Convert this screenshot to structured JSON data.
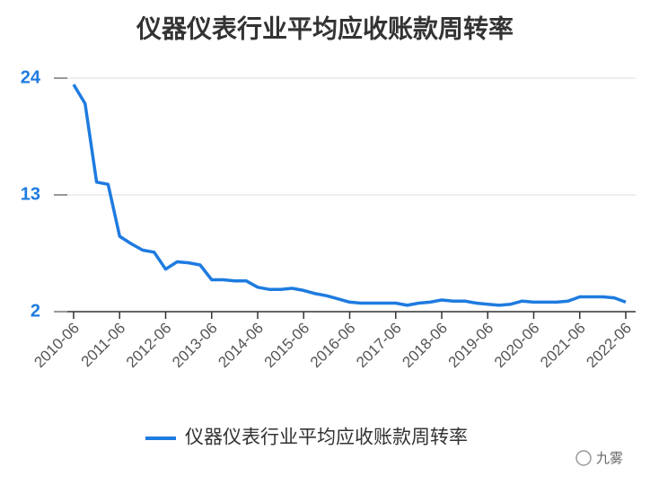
{
  "chart_data": {
    "type": "line",
    "title": "仪器仪表行业平均应收账款周转率",
    "categories": [
      "2010-06",
      null,
      null,
      null,
      "2011-06",
      null,
      null,
      null,
      "2012-06",
      null,
      null,
      null,
      "2013-06",
      null,
      null,
      null,
      "2014-06",
      null,
      null,
      null,
      "2015-06",
      null,
      null,
      null,
      "2016-06",
      null,
      null,
      null,
      "2017-06",
      null,
      null,
      null,
      "2018-06",
      null,
      null,
      null,
      "2019-06",
      null,
      null,
      null,
      "2020-06",
      null,
      null,
      null,
      "2021-06",
      null,
      null,
      null,
      "2022-06"
    ],
    "series": [
      {
        "name": "仪器仪表行业平均应收账款周转率",
        "color": "#1e7be0",
        "values": [
          23.4,
          21.6,
          14.2,
          14.0,
          9.1,
          8.4,
          7.8,
          7.6,
          6.0,
          6.7,
          6.6,
          6.4,
          5.0,
          5.0,
          4.9,
          4.9,
          4.3,
          4.1,
          4.1,
          4.2,
          4.0,
          3.7,
          3.5,
          3.2,
          2.9,
          2.8,
          2.8,
          2.8,
          2.8,
          2.6,
          2.8,
          2.9,
          3.1,
          3.0,
          3.0,
          2.8,
          2.7,
          2.6,
          2.7,
          3.0,
          2.9,
          2.9,
          2.9,
          3.0,
          3.4,
          3.4,
          3.4,
          3.3,
          2.9
        ]
      }
    ],
    "ylim": [
      2,
      24
    ],
    "yticks": [
      2,
      13,
      24
    ],
    "grid": true,
    "legend": "bottom",
    "watermark": "九雾"
  }
}
